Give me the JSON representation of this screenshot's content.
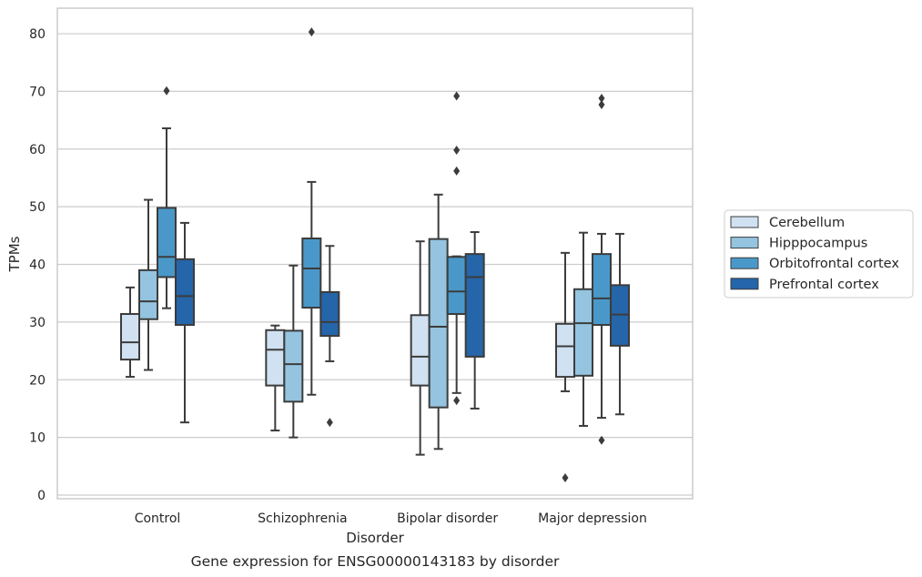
{
  "chart_data": {
    "type": "box",
    "title": "",
    "caption": "Gene expression for ENSG00000143183 by disorder",
    "xlabel": "Disorder",
    "ylabel": "TPMs",
    "ylim": [
      -0.5,
      84
    ],
    "yticks": [
      0,
      10,
      20,
      30,
      40,
      50,
      60,
      70,
      80
    ],
    "grid": "horizontal",
    "legend_position": "right",
    "categories": [
      "Control",
      "Schizophrenia",
      "Bipolar disorder",
      "Major depression"
    ],
    "series": [
      {
        "name": "Cerebellum",
        "color": "#d0e1f2",
        "boxes": [
          {
            "whislo": 20.5,
            "q1": 23.5,
            "med": 26.5,
            "q3": 31.4,
            "whishi": 36.0,
            "fliers": []
          },
          {
            "whislo": 11.2,
            "q1": 19.0,
            "med": 25.2,
            "q3": 28.6,
            "whishi": 29.4,
            "fliers": []
          },
          {
            "whislo": 7.0,
            "q1": 19.0,
            "med": 24.0,
            "q3": 31.2,
            "whishi": 44.0,
            "fliers": []
          },
          {
            "whislo": 18.0,
            "q1": 20.5,
            "med": 25.8,
            "q3": 29.7,
            "whishi": 42.0,
            "fliers": [
              3.0
            ]
          }
        ]
      },
      {
        "name": "Hipppocampus",
        "color": "#94c4df",
        "boxes": [
          {
            "whislo": 21.7,
            "q1": 30.5,
            "med": 33.6,
            "q3": 39.0,
            "whishi": 51.2,
            "fliers": []
          },
          {
            "whislo": 10.0,
            "q1": 16.2,
            "med": 22.7,
            "q3": 28.5,
            "whishi": 39.8,
            "fliers": []
          },
          {
            "whislo": 8.0,
            "q1": 15.2,
            "med": 29.2,
            "q3": 44.4,
            "whishi": 52.1,
            "fliers": []
          },
          {
            "whislo": 12.0,
            "q1": 20.7,
            "med": 29.8,
            "q3": 35.7,
            "whishi": 45.5,
            "fliers": []
          }
        ]
      },
      {
        "name": "Orbitofrontal cortex",
        "color": "#4a98c9",
        "boxes": [
          {
            "whislo": 32.4,
            "q1": 37.8,
            "med": 41.3,
            "q3": 49.8,
            "whishi": 63.6,
            "fliers": [
              70.1
            ]
          },
          {
            "whislo": 17.4,
            "q1": 32.5,
            "med": 39.3,
            "q3": 44.5,
            "whishi": 54.3,
            "fliers": [
              80.3
            ]
          },
          {
            "whislo": 17.7,
            "q1": 31.4,
            "med": 35.3,
            "q3": 41.3,
            "whishi": 41.4,
            "fliers": [
              16.4,
              56.2,
              59.8,
              69.2
            ]
          },
          {
            "whislo": 13.4,
            "q1": 29.5,
            "med": 34.1,
            "q3": 41.8,
            "whishi": 45.3,
            "fliers": [
              9.5,
              67.7,
              68.8
            ]
          }
        ]
      },
      {
        "name": "Prefrontal cortex",
        "color": "#2565a9",
        "boxes": [
          {
            "whislo": 12.6,
            "q1": 29.5,
            "med": 34.5,
            "q3": 40.9,
            "whishi": 47.2,
            "fliers": []
          },
          {
            "whislo": 23.2,
            "q1": 27.6,
            "med": 30.0,
            "q3": 35.2,
            "whishi": 43.2,
            "fliers": [
              12.6
            ]
          },
          {
            "whislo": 15.0,
            "q1": 24.0,
            "med": 37.8,
            "q3": 41.8,
            "whishi": 45.6,
            "fliers": []
          },
          {
            "whislo": 14.0,
            "q1": 25.9,
            "med": 31.3,
            "q3": 36.4,
            "whishi": 45.3,
            "fliers": []
          }
        ]
      }
    ]
  }
}
